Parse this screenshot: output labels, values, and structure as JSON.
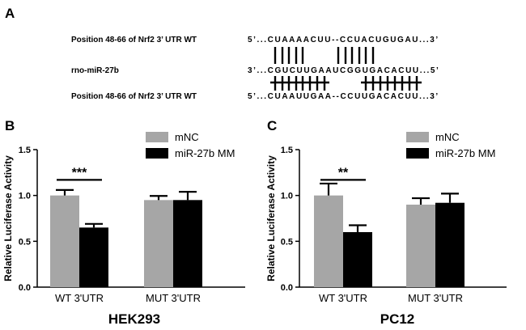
{
  "panel_a": {
    "letter": "A",
    "rows": [
      {
        "label": "Position 48-66 of Nrf2 3’ UTR WT",
        "sequence": "5’...CUAAAACUU--CCUACUGUGAU...3’"
      },
      {
        "label": "rno-miR-27b",
        "sequence": "3’...CGUCUUGAAUCGGUGACACUU...5’"
      },
      {
        "label": "Position 48-66 of Nrf2 3’ UTR WT",
        "sequence": "5’...CUAAUUGAA--CCUUGACACUU...3’"
      }
    ]
  },
  "chart_data": [
    {
      "type": "bar",
      "letter": "B",
      "title": "HEK293",
      "ylabel": "Relative Luciferase Activity",
      "ylim": [
        0,
        1.5
      ],
      "yticks": [
        "0.0",
        "0.5",
        "1.0",
        "1.5"
      ],
      "categories": [
        "WT 3'UTR",
        "MUT 3'UTR"
      ],
      "series": [
        {
          "name": "mNC",
          "color": "#a6a6a6",
          "values": [
            1.0,
            0.95
          ],
          "errors": [
            0.06,
            0.045
          ]
        },
        {
          "name": "miR-27b MM",
          "color": "#000000",
          "values": [
            0.65,
            0.95
          ],
          "errors": [
            0.04,
            0.09
          ]
        }
      ],
      "significance": "***",
      "legend": "top-right"
    },
    {
      "type": "bar",
      "letter": "C",
      "title": "PC12",
      "ylabel": "Relative Luciferase Activity",
      "ylim": [
        0,
        1.5
      ],
      "yticks": [
        "0.0",
        "0.5",
        "1.0",
        "1.5"
      ],
      "categories": [
        "WT 3'UTR",
        "MUT 3'UTR"
      ],
      "series": [
        {
          "name": "mNC",
          "color": "#a6a6a6",
          "values": [
            1.0,
            0.9
          ],
          "errors": [
            0.13,
            0.07
          ]
        },
        {
          "name": "miR-27b MM",
          "color": "#000000",
          "values": [
            0.6,
            0.92
          ],
          "errors": [
            0.075,
            0.1
          ]
        }
      ],
      "significance": "**",
      "legend": "top-right"
    }
  ]
}
